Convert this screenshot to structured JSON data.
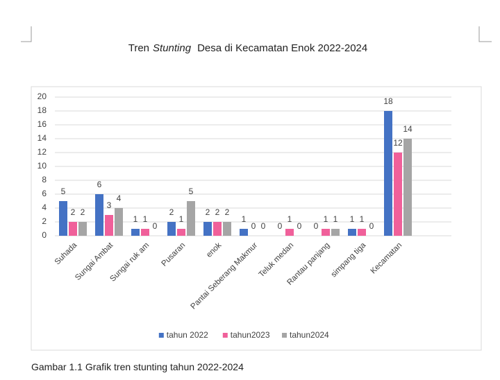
{
  "chart_data": {
    "type": "bar",
    "title": [
      "Tren",
      "Stunting",
      "Desa di Kecamatan Enok 2022-2024"
    ],
    "categories": [
      "Suhada",
      "Sungai Ambat",
      "Sungai ruk am",
      "Pusaran",
      "enok",
      "Pantai Seberang Makmur",
      "Teluk medan",
      "Rantau panjang",
      "simpang tiga",
      "Kecamatan"
    ],
    "series": [
      {
        "name": "tahun 2022",
        "color": "#4472c4",
        "values": [
          5,
          6,
          1,
          2,
          2,
          1,
          0,
          0,
          1,
          18
        ]
      },
      {
        "name": "tahun2023",
        "color": "#f0609a",
        "values": [
          2,
          3,
          1,
          1,
          2,
          0,
          1,
          1,
          1,
          12
        ]
      },
      {
        "name": "tahun2024",
        "color": "#a5a5a5",
        "values": [
          2,
          4,
          0,
          5,
          2,
          0,
          0,
          1,
          0,
          14
        ]
      }
    ],
    "ylim": [
      0,
      20
    ],
    "yticks": [
      0,
      2,
      4,
      6,
      8,
      10,
      12,
      14,
      16,
      18,
      20
    ],
    "grid": true,
    "legend": "bottom"
  },
  "caption": "Gambar 1.1 Grafik tren stunting tahun 2022-2024"
}
